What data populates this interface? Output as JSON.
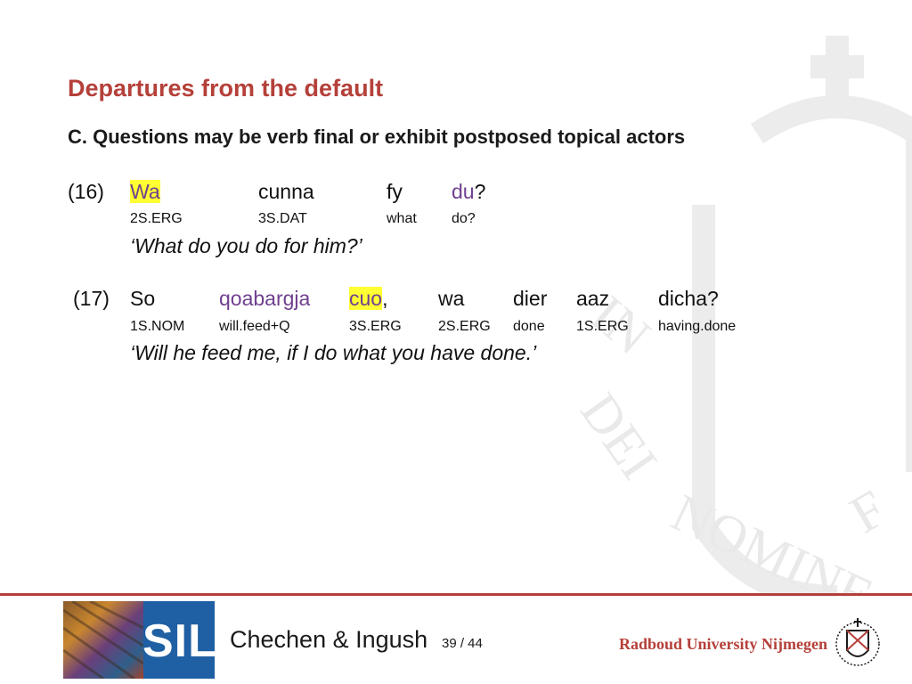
{
  "slide": {
    "title": "Departures from the default",
    "subtitle": "C. Questions may be verb final or exhibit postposed topical actors"
  },
  "example16": {
    "label": "(16)",
    "words": [
      "Wa",
      "cunna",
      "fy",
      "du"
    ],
    "word_suffix": "?",
    "glosses": [
      "2S.ERG",
      "3S.DAT",
      "what",
      "do?"
    ],
    "translation": "‘What do you do for him?’"
  },
  "example17": {
    "label": "(17)",
    "words": [
      "So",
      "qoabargja",
      "cuo",
      "wa",
      "dier",
      "aaz",
      "dicha?"
    ],
    "word_suffix": ",",
    "glosses": [
      "1S.NOM",
      "will.feed+Q",
      "3S.ERG",
      "2S.ERG",
      "done",
      "1S.ERG",
      "having.done"
    ],
    "translation": "‘Will he feed me, if I do what you have done.’"
  },
  "footer": {
    "logo_text": "SIL",
    "title": "Chechen & Ingush",
    "page": "39 / 44",
    "university": "Radboud University Nijmegen",
    "watermark_text": "IN DEI NOMINE FELICITER"
  },
  "colors": {
    "title": "#b5403a",
    "highlight": "#ffff33",
    "purple_word": "#6f3f8f"
  }
}
